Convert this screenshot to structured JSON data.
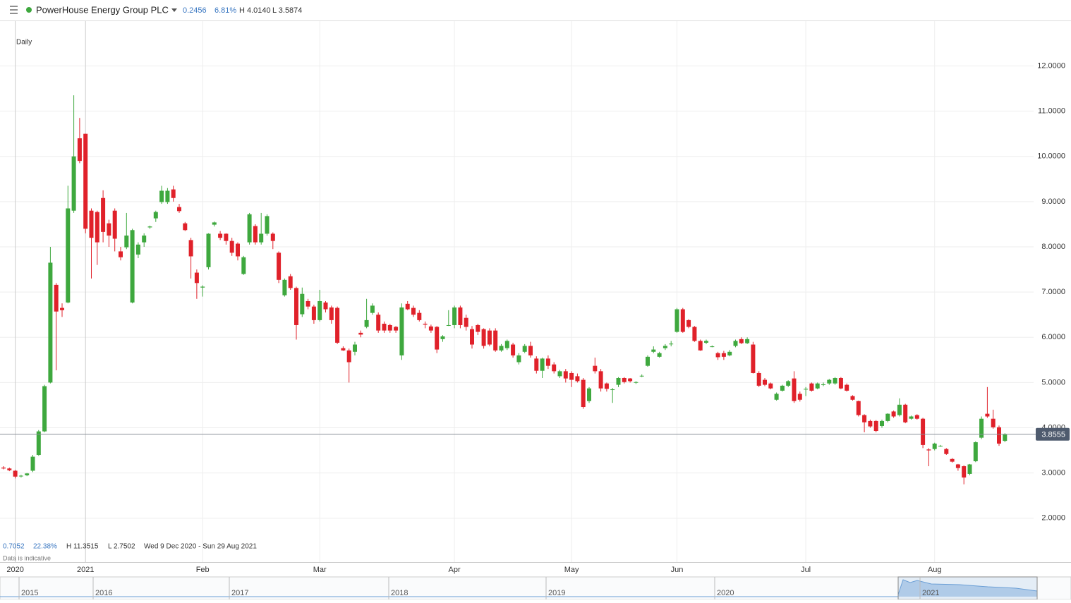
{
  "header": {
    "title": "PowerHouse Energy Group PLC",
    "change": "0.2456",
    "change_pct": "6.81%",
    "high": "H 4.0140",
    "low": "L 3.5874"
  },
  "footer": {
    "change": "0.7052",
    "change_pct": "22.38%",
    "high": "H 11.3515",
    "low": "L 2.7502",
    "range": "Wed 9 Dec 2020 - Sun 29 Aug 2021",
    "note": "Data is indicative"
  },
  "navigator": {
    "years": [
      "2015",
      "2016",
      "2017",
      "2018",
      "2019",
      "2020",
      "2021"
    ]
  },
  "chart_data": {
    "type": "candlestick",
    "interval": "Daily",
    "up_color": "#3ea83e",
    "down_color": "#e0212a",
    "categories": [
      null,
      null,
      "2020",
      null,
      null,
      null,
      null,
      null,
      null,
      null,
      null,
      null,
      null,
      null,
      "2021",
      null,
      null,
      null,
      null,
      null,
      null,
      null,
      null,
      null,
      null,
      null,
      null,
      null,
      null,
      null,
      null,
      null,
      null,
      null,
      "Feb",
      null,
      null,
      null,
      null,
      null,
      null,
      null,
      null,
      null,
      null,
      null,
      null,
      null,
      null,
      null,
      null,
      null,
      null,
      null,
      "Mar",
      null,
      null,
      null,
      null,
      null,
      null,
      null,
      null,
      null,
      null,
      null,
      null,
      null,
      null,
      null,
      null,
      null,
      null,
      null,
      null,
      null,
      null,
      "Apr",
      null,
      null,
      null,
      null,
      null,
      null,
      null,
      null,
      null,
      null,
      null,
      null,
      null,
      null,
      null,
      null,
      null,
      null,
      null,
      "May",
      null,
      null,
      null,
      null,
      null,
      null,
      null,
      null,
      null,
      null,
      null,
      null,
      null,
      null,
      null,
      null,
      null,
      "Jun",
      null,
      null,
      null,
      null,
      null,
      null,
      null,
      null,
      null,
      null,
      null,
      null,
      null,
      null,
      null,
      null,
      null,
      null,
      null,
      null,
      null,
      "Jul",
      null,
      null,
      null,
      null,
      null,
      null,
      null,
      null,
      null,
      null,
      null,
      null,
      null,
      null,
      null,
      null,
      null,
      null,
      null,
      null,
      null,
      "Aug",
      null,
      null,
      null,
      null,
      null,
      null,
      null,
      null,
      null,
      null,
      null,
      null
    ],
    "open": [
      3.12,
      3.1,
      3.05,
      2.93,
      2.95,
      3.05,
      3.4,
      3.92,
      5.0,
      7.16,
      6.65,
      6.77,
      8.8,
      10.4,
      10.5,
      8.8,
      8.77,
      9.08,
      8.52,
      8.8,
      7.9,
      7.99,
      6.77,
      7.83,
      8.1,
      8.43,
      8.63,
      8.99,
      8.99,
      9.27,
      8.88,
      8.52,
      8.15,
      7.43,
      7.1,
      7.55,
      8.49,
      8.29,
      8.29,
      8.13,
      8.07,
      7.4,
      8.1,
      8.46,
      8.1,
      8.29,
      8.29,
      7.87,
      6.93,
      7.35,
      7.09,
      6.51,
      6.8,
      6.68,
      6.38,
      6.77,
      6.66,
      6.65,
      5.76,
      5.71,
      5.68,
      6.1,
      6.23,
      6.54,
      6.5,
      6.3,
      6.27,
      6.23,
      5.6,
      6.74,
      6.65,
      6.54,
      6.3,
      6.24,
      6.23,
      5.96,
      6.27,
      6.27,
      6.66,
      6.43,
      6.18,
      6.27,
      6.18,
      6.15,
      6.15,
      5.71,
      5.76,
      5.84,
      5.45,
      5.68,
      5.81,
      5.53,
      5.26,
      5.53,
      5.4,
      5.14,
      5.25,
      5.21,
      5.14,
      5.06,
      4.59,
      5.37,
      5.25,
      4.98,
      4.85,
      4.95,
      5.1,
      5.09,
      5.0,
      5.15,
      5.37,
      5.68,
      5.57,
      5.76,
      5.85,
      6.12,
      6.62,
      6.38,
      6.23,
      5.92,
      5.88,
      5.8,
      5.65,
      5.65,
      5.6,
      5.81,
      5.96,
      5.87,
      5.84,
      5.21,
      5.06,
      4.98,
      4.62,
      4.82,
      4.93,
      5.09,
      4.75,
      4.85,
      4.98,
      4.87,
      4.95,
      4.98,
      4.98,
      5.1,
      4.95,
      4.7,
      4.59,
      4.28,
      4.15,
      4.15,
      4.04,
      4.15,
      4.36,
      4.28,
      4.51,
      4.2,
      4.28,
      4.2,
      3.52,
      3.53,
      3.6,
      3.53,
      3.31,
      3.19,
      3.15,
      2.98,
      3.26,
      3.78,
      4.31,
      4.2,
      4.01,
      3.71
    ],
    "high": [
      3.15,
      3.12,
      3.07,
      2.96,
      3.0,
      3.4,
      3.95,
      4.95,
      8.0,
      7.2,
      6.75,
      9.35,
      11.35,
      10.85,
      10.5,
      8.85,
      8.8,
      9.25,
      8.6,
      8.85,
      8.0,
      8.75,
      8.4,
      8.1,
      8.3,
      8.47,
      8.8,
      9.35,
      9.3,
      9.35,
      8.95,
      8.55,
      8.2,
      7.5,
      7.15,
      8.3,
      8.56,
      8.35,
      8.3,
      8.2,
      8.1,
      7.8,
      8.75,
      8.5,
      8.75,
      8.72,
      8.32,
      7.9,
      7.3,
      7.4,
      7.12,
      7.1,
      6.85,
      6.72,
      7.05,
      6.8,
      6.7,
      6.68,
      5.8,
      5.75,
      5.9,
      6.15,
      6.85,
      6.75,
      6.55,
      6.35,
      6.3,
      6.25,
      6.75,
      6.8,
      6.7,
      6.6,
      6.35,
      6.28,
      6.25,
      6.05,
      6.6,
      6.7,
      6.7,
      6.5,
      6.25,
      6.3,
      6.2,
      6.2,
      6.2,
      5.85,
      5.95,
      5.88,
      5.65,
      5.85,
      5.9,
      5.58,
      5.55,
      5.6,
      5.45,
      5.28,
      5.3,
      5.25,
      5.2,
      5.1,
      4.9,
      5.55,
      5.3,
      5.0,
      4.88,
      5.12,
      5.12,
      5.1,
      5.03,
      5.18,
      5.6,
      5.8,
      5.68,
      5.85,
      5.92,
      6.65,
      6.65,
      6.4,
      6.25,
      5.95,
      5.95,
      5.82,
      5.68,
      5.7,
      5.72,
      5.95,
      6.0,
      6.0,
      5.9,
      5.25,
      5.1,
      5.0,
      4.78,
      4.95,
      5.05,
      5.25,
      4.8,
      4.9,
      5.0,
      5.0,
      5.0,
      5.08,
      5.12,
      5.12,
      4.98,
      4.72,
      4.6,
      4.3,
      4.18,
      4.17,
      4.18,
      4.32,
      4.38,
      4.65,
      4.53,
      4.27,
      4.3,
      4.22,
      3.55,
      3.67,
      3.62,
      3.55,
      3.33,
      3.2,
      3.17,
      3.2,
      3.7,
      4.25,
      4.9,
      4.4,
      4.05,
      3.88
    ],
    "low": [
      3.08,
      3.04,
      2.88,
      2.9,
      2.93,
      3.02,
      3.38,
      3.9,
      4.98,
      5.27,
      6.45,
      6.75,
      8.75,
      9.85,
      8.3,
      7.3,
      7.6,
      8.1,
      8.0,
      7.9,
      7.7,
      7.95,
      6.75,
      7.75,
      8.0,
      8.4,
      8.55,
      8.95,
      8.95,
      9.0,
      8.75,
      8.35,
      7.3,
      6.85,
      6.9,
      7.5,
      8.45,
      8.15,
      8.05,
      7.8,
      7.7,
      7.38,
      8.05,
      8.05,
      8.05,
      8.25,
      7.95,
      7.2,
      6.9,
      7.05,
      5.95,
      6.45,
      6.62,
      6.3,
      6.35,
      6.55,
      6.3,
      5.85,
      5.7,
      5.0,
      5.6,
      6.0,
      6.2,
      6.5,
      6.1,
      6.1,
      6.1,
      6.1,
      5.5,
      6.6,
      6.45,
      6.35,
      6.2,
      6.1,
      5.65,
      5.9,
      6.25,
      6.2,
      6.2,
      6.15,
      5.75,
      6.05,
      5.75,
      5.8,
      5.68,
      5.68,
      5.72,
      5.55,
      5.4,
      5.65,
      5.55,
      5.2,
      5.1,
      5.3,
      5.2,
      5.1,
      5.0,
      4.9,
      5.0,
      4.42,
      4.55,
      5.2,
      4.8,
      4.8,
      4.55,
      4.9,
      4.98,
      5.0,
      4.97,
      5.12,
      5.35,
      5.65,
      5.55,
      5.72,
      5.8,
      6.1,
      6.1,
      6.2,
      5.9,
      5.7,
      5.85,
      5.78,
      5.5,
      5.5,
      5.58,
      5.78,
      5.85,
      5.85,
      5.2,
      4.9,
      4.92,
      4.85,
      4.6,
      4.8,
      4.9,
      4.55,
      4.58,
      4.7,
      4.8,
      4.85,
      4.92,
      4.95,
      4.95,
      4.85,
      4.8,
      4.6,
      4.25,
      3.9,
      4.0,
      3.9,
      4.0,
      4.12,
      4.22,
      4.25,
      4.1,
      4.18,
      4.18,
      3.55,
      3.15,
      3.5,
      3.58,
      3.4,
      3.23,
      3.05,
      2.75,
      2.95,
      3.24,
      3.75,
      4.22,
      3.98,
      3.6,
      3.68
    ],
    "close": [
      3.1,
      3.06,
      2.92,
      2.94,
      2.99,
      3.36,
      3.92,
      4.92,
      7.65,
      6.57,
      6.6,
      8.85,
      10.0,
      9.9,
      8.4,
      8.2,
      8.1,
      8.33,
      8.25,
      8.18,
      7.77,
      8.25,
      8.37,
      8.05,
      8.25,
      8.45,
      8.77,
      9.24,
      9.24,
      9.08,
      8.79,
      8.37,
      7.79,
      7.2,
      7.12,
      8.29,
      8.54,
      8.2,
      8.13,
      7.87,
      7.79,
      7.77,
      8.72,
      8.1,
      8.29,
      8.68,
      8.13,
      7.27,
      7.27,
      7.09,
      6.27,
      6.96,
      6.68,
      6.38,
      6.8,
      6.62,
      6.38,
      5.88,
      5.71,
      5.45,
      5.84,
      6.06,
      6.38,
      6.7,
      6.15,
      6.15,
      6.15,
      6.15,
      6.66,
      6.62,
      6.5,
      6.38,
      6.28,
      6.15,
      5.73,
      6.02,
      6.27,
      6.66,
      6.27,
      6.23,
      5.84,
      6.12,
      5.81,
      5.84,
      5.71,
      5.81,
      5.92,
      5.6,
      5.6,
      5.81,
      5.6,
      5.26,
      5.53,
      5.37,
      5.25,
      5.25,
      5.09,
      5.06,
      5.03,
      4.46,
      4.87,
      5.25,
      4.87,
      4.86,
      4.85,
      5.1,
      5.01,
      5.03,
      5.01,
      5.15,
      5.57,
      5.73,
      5.65,
      5.81,
      5.86,
      6.62,
      6.12,
      6.23,
      5.92,
      5.71,
      5.92,
      5.8,
      5.56,
      5.57,
      5.68,
      5.92,
      5.87,
      5.96,
      5.21,
      4.93,
      4.95,
      4.87,
      4.75,
      4.93,
      5.03,
      4.59,
      4.62,
      4.86,
      4.82,
      4.98,
      4.96,
      5.06,
      5.1,
      4.87,
      4.82,
      4.62,
      4.28,
      4.12,
      4.03,
      3.93,
      4.15,
      4.31,
      4.25,
      4.51,
      4.12,
      4.25,
      4.2,
      3.62,
      3.5,
      3.65,
      3.6,
      3.42,
      3.25,
      3.11,
      2.9,
      3.19,
      3.68,
      4.2,
      4.25,
      4.01,
      3.65,
      3.86
    ],
    "ylim": [
      1.03,
      12.99
    ],
    "yticks": [
      {
        "value": 2,
        "label": "2.0000"
      },
      {
        "value": 3,
        "label": "3.0000"
      },
      {
        "value": 4,
        "label": "4.0000"
      },
      {
        "value": 5,
        "label": "5.0000"
      },
      {
        "value": 6,
        "label": "6.0000"
      },
      {
        "value": 7,
        "label": "7.0000"
      },
      {
        "value": 8,
        "label": "8.0000"
      },
      {
        "value": 9,
        "label": "9.0000"
      },
      {
        "value": 10,
        "label": "10.0000"
      },
      {
        "value": 11,
        "label": "11.0000"
      },
      {
        "value": 12,
        "label": "12.0000"
      }
    ],
    "last_price": {
      "value": 3.8555,
      "label": "3.8555"
    },
    "grid": true
  }
}
